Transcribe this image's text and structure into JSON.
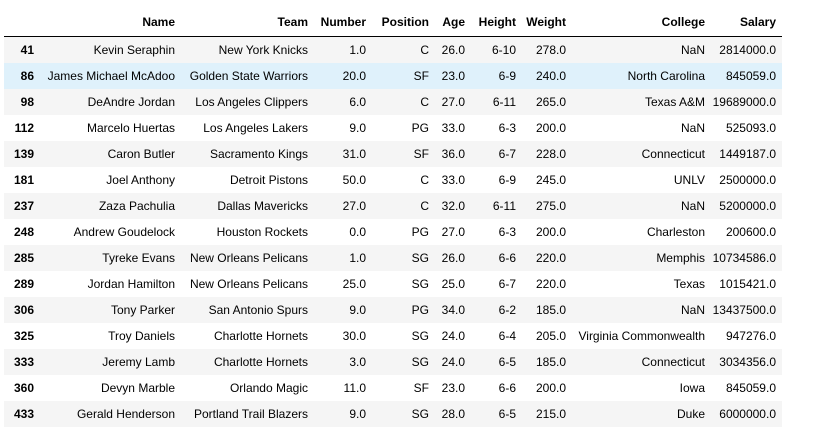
{
  "table": {
    "index_header": "",
    "columns": [
      "Name",
      "Team",
      "Number",
      "Position",
      "Age",
      "Height",
      "Weight",
      "College",
      "Salary"
    ],
    "highlighted_row": 1,
    "rows": [
      {
        "index": "41",
        "cells": [
          "Kevin Seraphin",
          "New York Knicks",
          "1.0",
          "C",
          "26.0",
          "6-10",
          "278.0",
          "NaN",
          "2814000.0"
        ]
      },
      {
        "index": "86",
        "cells": [
          "James Michael McAdoo",
          "Golden State Warriors",
          "20.0",
          "SF",
          "23.0",
          "6-9",
          "240.0",
          "North Carolina",
          "845059.0"
        ]
      },
      {
        "index": "98",
        "cells": [
          "DeAndre Jordan",
          "Los Angeles Clippers",
          "6.0",
          "C",
          "27.0",
          "6-11",
          "265.0",
          "Texas A&M",
          "19689000.0"
        ]
      },
      {
        "index": "112",
        "cells": [
          "Marcelo Huertas",
          "Los Angeles Lakers",
          "9.0",
          "PG",
          "33.0",
          "6-3",
          "200.0",
          "NaN",
          "525093.0"
        ]
      },
      {
        "index": "139",
        "cells": [
          "Caron Butler",
          "Sacramento Kings",
          "31.0",
          "SF",
          "36.0",
          "6-7",
          "228.0",
          "Connecticut",
          "1449187.0"
        ]
      },
      {
        "index": "181",
        "cells": [
          "Joel Anthony",
          "Detroit Pistons",
          "50.0",
          "C",
          "33.0",
          "6-9",
          "245.0",
          "UNLV",
          "2500000.0"
        ]
      },
      {
        "index": "237",
        "cells": [
          "Zaza Pachulia",
          "Dallas Mavericks",
          "27.0",
          "C",
          "32.0",
          "6-11",
          "275.0",
          "NaN",
          "5200000.0"
        ]
      },
      {
        "index": "248",
        "cells": [
          "Andrew Goudelock",
          "Houston Rockets",
          "0.0",
          "PG",
          "27.0",
          "6-3",
          "200.0",
          "Charleston",
          "200600.0"
        ]
      },
      {
        "index": "285",
        "cells": [
          "Tyreke Evans",
          "New Orleans Pelicans",
          "1.0",
          "SG",
          "26.0",
          "6-6",
          "220.0",
          "Memphis",
          "10734586.0"
        ]
      },
      {
        "index": "289",
        "cells": [
          "Jordan Hamilton",
          "New Orleans Pelicans",
          "25.0",
          "SG",
          "25.0",
          "6-7",
          "220.0",
          "Texas",
          "1015421.0"
        ]
      },
      {
        "index": "306",
        "cells": [
          "Tony Parker",
          "San Antonio Spurs",
          "9.0",
          "PG",
          "34.0",
          "6-2",
          "185.0",
          "NaN",
          "13437500.0"
        ]
      },
      {
        "index": "325",
        "cells": [
          "Troy Daniels",
          "Charlotte Hornets",
          "30.0",
          "SG",
          "24.0",
          "6-4",
          "205.0",
          "Virginia Commonwealth",
          "947276.0"
        ]
      },
      {
        "index": "333",
        "cells": [
          "Jeremy Lamb",
          "Charlotte Hornets",
          "3.0",
          "SG",
          "24.0",
          "6-5",
          "185.0",
          "Connecticut",
          "3034356.0"
        ]
      },
      {
        "index": "360",
        "cells": [
          "Devyn Marble",
          "Orlando Magic",
          "11.0",
          "SF",
          "23.0",
          "6-6",
          "200.0",
          "Iowa",
          "845059.0"
        ]
      },
      {
        "index": "433",
        "cells": [
          "Gerald Henderson",
          "Portland Trail Blazers",
          "9.0",
          "SG",
          "28.0",
          "6-5",
          "215.0",
          "Duke",
          "6000000.0"
        ]
      }
    ]
  }
}
